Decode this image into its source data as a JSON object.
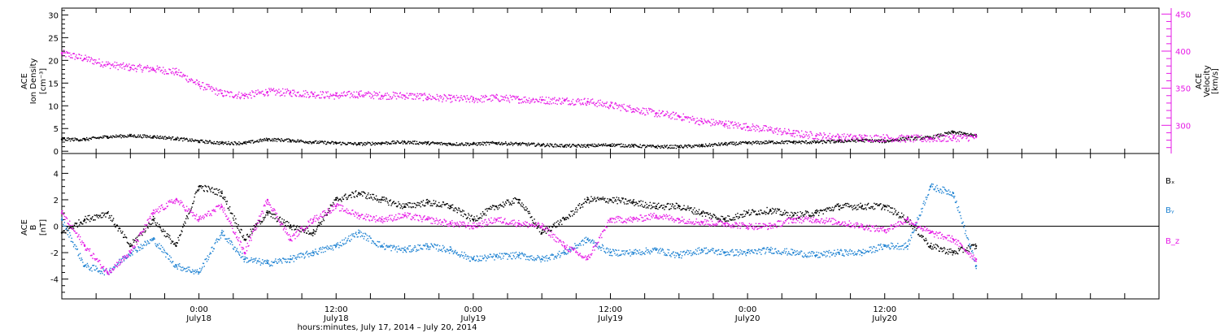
{
  "colors": {
    "black": "#000000",
    "magenta": "#e619e6",
    "blue": "#1e82d2"
  },
  "chart_data": [
    {
      "type": "scatter",
      "panel": "top",
      "ylabel_left": [
        "ACE",
        "Ion Density",
        "[cm⁻³]"
      ],
      "ylabel_right": [
        "ACE",
        "Velocity",
        "[km/s]"
      ],
      "ylim_left": [
        -0.5,
        31.5
      ],
      "ylim_right": [
        262,
        458
      ],
      "yticks_left": [
        0,
        5,
        10,
        15,
        20,
        25,
        30
      ],
      "yticks_right": [
        300,
        350,
        400,
        450
      ],
      "grid": false,
      "series": [
        {
          "key": "density",
          "axis": "left",
          "color": "black",
          "x": [
            0,
            2,
            4,
            6,
            8,
            10,
            12,
            14,
            16,
            18,
            20,
            22,
            24,
            26,
            28,
            30,
            32,
            34,
            36,
            38,
            40,
            42,
            44,
            46,
            48,
            50,
            52,
            54,
            56,
            58,
            60,
            62,
            64,
            66,
            68,
            70,
            72,
            74,
            76,
            78,
            80
          ],
          "y": [
            2.6,
            2.6,
            3.2,
            3.4,
            3.2,
            2.8,
            2.2,
            1.8,
            1.8,
            2.6,
            2.4,
            2.0,
            1.8,
            1.6,
            1.8,
            2.0,
            1.8,
            1.6,
            1.6,
            1.8,
            1.6,
            1.4,
            1.2,
            1.2,
            1.4,
            1.2,
            1.0,
            1.0,
            1.2,
            1.6,
            1.8,
            2.0,
            2.0,
            2.0,
            2.2,
            2.4,
            2.2,
            2.8,
            3.0,
            4.2,
            3.4
          ]
        },
        {
          "key": "velocity",
          "axis": "right",
          "color": "magenta",
          "x": [
            0,
            2,
            4,
            6,
            8,
            10,
            12,
            14,
            16,
            18,
            20,
            22,
            24,
            26,
            28,
            30,
            32,
            34,
            36,
            38,
            40,
            42,
            44,
            46,
            48,
            50,
            52,
            54,
            56,
            58,
            60,
            62,
            64,
            66,
            68,
            70,
            72,
            74,
            76,
            78,
            80
          ],
          "y": [
            397,
            390,
            382,
            378,
            376,
            372,
            355,
            343,
            340,
            345,
            344,
            342,
            340,
            342,
            340,
            340,
            338,
            336,
            335,
            337,
            335,
            334,
            333,
            332,
            327,
            322,
            316,
            312,
            305,
            302,
            298,
            294,
            289,
            286,
            284,
            283,
            283,
            282,
            282,
            283,
            284
          ]
        }
      ]
    },
    {
      "type": "scatter",
      "panel": "bottom",
      "ylabel_left": [
        "ACE",
        "B",
        "[nT]"
      ],
      "ylim_left": [
        -5.5,
        5.5
      ],
      "yticks_left": [
        -4,
        -2,
        0,
        2,
        4
      ],
      "zero_line": true,
      "grid": false,
      "legend": [
        "Bₓ",
        "Bᵧ",
        "B_z"
      ],
      "legend_placement": "right",
      "series": [
        {
          "key": "bx",
          "color": "black",
          "x": [
            0,
            2,
            4,
            6,
            8,
            10,
            12,
            14,
            16,
            18,
            20,
            22,
            24,
            26,
            28,
            30,
            32,
            34,
            36,
            38,
            40,
            42,
            44,
            46,
            48,
            50,
            52,
            54,
            56,
            58,
            60,
            62,
            64,
            66,
            68,
            70,
            72,
            74,
            76,
            78,
            80
          ],
          "y": [
            -0.5,
            0.5,
            1.0,
            -1.5,
            0.5,
            -1.5,
            3.0,
            2.5,
            -1.0,
            1.0,
            0.0,
            -0.5,
            2.0,
            2.5,
            2.0,
            1.5,
            1.8,
            1.5,
            0.5,
            1.5,
            2.0,
            -0.5,
            0.5,
            2.0,
            2.0,
            1.8,
            1.5,
            1.5,
            1.0,
            0.5,
            1.0,
            1.2,
            0.8,
            1.0,
            1.5,
            1.5,
            1.5,
            0.5,
            -1.5,
            -2.0,
            -1.5
          ]
        },
        {
          "key": "by",
          "color": "blue",
          "x": [
            0,
            2,
            4,
            6,
            8,
            10,
            12,
            14,
            16,
            18,
            20,
            22,
            24,
            26,
            28,
            30,
            32,
            34,
            36,
            38,
            40,
            42,
            44,
            46,
            48,
            50,
            52,
            54,
            56,
            58,
            60,
            62,
            64,
            66,
            68,
            70,
            72,
            74,
            76,
            78,
            80
          ],
          "y": [
            0.5,
            -3.0,
            -3.5,
            -2.0,
            -1.0,
            -3.0,
            -3.5,
            -0.5,
            -2.5,
            -2.8,
            -2.5,
            -2.0,
            -1.5,
            -0.5,
            -1.5,
            -1.8,
            -1.5,
            -1.8,
            -2.5,
            -2.3,
            -2.2,
            -2.5,
            -2.0,
            -1.0,
            -2.0,
            -2.0,
            -1.8,
            -2.2,
            -1.8,
            -2.0,
            -2.0,
            -1.8,
            -2.0,
            -2.2,
            -2.0,
            -2.0,
            -1.5,
            -1.5,
            3.0,
            2.5,
            -3.0
          ]
        },
        {
          "key": "bz",
          "color": "magenta",
          "x": [
            0,
            2,
            4,
            6,
            8,
            10,
            12,
            14,
            16,
            18,
            20,
            22,
            24,
            26,
            28,
            30,
            32,
            34,
            36,
            38,
            40,
            42,
            44,
            46,
            48,
            50,
            52,
            54,
            56,
            58,
            60,
            62,
            64,
            66,
            68,
            70,
            72,
            74,
            76,
            78,
            80
          ],
          "y": [
            1.0,
            -1.5,
            -3.5,
            -2.0,
            1.0,
            2.0,
            0.5,
            1.5,
            -2.0,
            2.0,
            -1.0,
            0.5,
            1.5,
            0.8,
            0.5,
            0.8,
            0.5,
            0.2,
            0.0,
            0.5,
            0.2,
            0.0,
            -1.5,
            -2.5,
            0.5,
            0.5,
            0.8,
            0.5,
            0.3,
            0.2,
            0.0,
            0.0,
            0.5,
            0.5,
            0.3,
            0.0,
            -0.3,
            0.5,
            -0.5,
            -1.0,
            -2.5
          ]
        }
      ]
    }
  ],
  "x_axis": {
    "xlim": [
      0,
      96
    ],
    "tick_hours": [
      0,
      3,
      6,
      9,
      12,
      15,
      18,
      21,
      24,
      27,
      30,
      33,
      36,
      39,
      42,
      45,
      48,
      51,
      54,
      57,
      60,
      63,
      66,
      69,
      72,
      75,
      78,
      81,
      84,
      87,
      90,
      93,
      96
    ],
    "labels": [
      {
        "hour": 12,
        "time": "0:00",
        "date": "July18"
      },
      {
        "hour": 24,
        "time": "12:00",
        "date": "July18"
      },
      {
        "hour": 36,
        "time": "0:00",
        "date": "July19"
      },
      {
        "hour": 48,
        "time": "12:00",
        "date": "July19"
      },
      {
        "hour": 60,
        "time": "0:00",
        "date": "July20"
      },
      {
        "hour": 72,
        "time": "12:00",
        "date": "July20"
      }
    ],
    "xlabel": "hours:minutes, July 17, 2014 – July 20, 2014"
  }
}
